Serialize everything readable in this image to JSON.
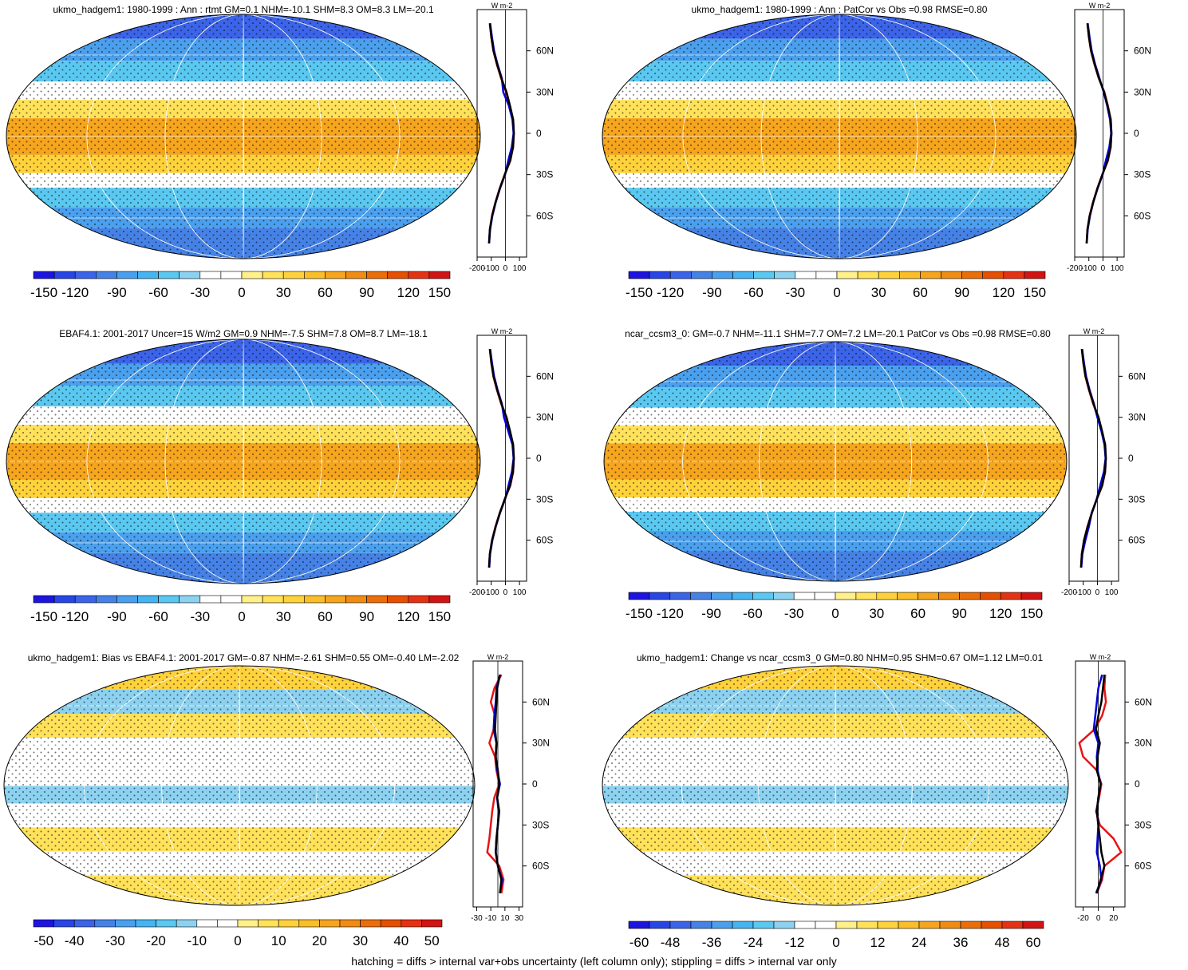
{
  "palette": {
    "colors": [
      "#1e14e0",
      "#2846e6",
      "#3c64e8",
      "#4682e6",
      "#4ba0ee",
      "#46b4f0",
      "#5ac8f0",
      "#8cd2f0",
      "#ffffff",
      "#ffffff",
      "#fff08c",
      "#ffe15a",
      "#ffd23c",
      "#fabe28",
      "#f5a51e",
      "#f08c14",
      "#eb6e0a",
      "#e65000",
      "#e63214",
      "#d21414"
    ],
    "obs_line": "#e61414",
    "model_line": "#0000dc",
    "ref_line": "#000000"
  },
  "footnote": "hatching = diffs > internal var+obs uncertainty (left column only); stippling = diffs > internal var only",
  "panels": [
    {
      "title": "ukmo_hadgem1: 1980-1999 : Ann : rtmt GM=0.1 NHM=-10.1 SHM=8.3 OM=8.3 LM=-20.1",
      "colorbar_labels": [
        "-150",
        "-120",
        "-90",
        "-60",
        "-30",
        "0",
        "30",
        "60",
        "90",
        "120",
        "150"
      ],
      "zonal_unit": "W m-2",
      "zonal_xticks": [
        "-200",
        "-100",
        "0",
        "100"
      ],
      "zonal_yticks": [
        "60N",
        "30N",
        "0",
        "30S",
        "60S"
      ],
      "pattern": "mean"
    },
    {
      "title": "ukmo_hadgem1: 1980-1999 : Ann : PatCor vs Obs =0.98 RMSE=0.80",
      "colorbar_labels": [
        "-150",
        "-120",
        "-90",
        "-60",
        "-30",
        "0",
        "30",
        "60",
        "90",
        "120",
        "150"
      ],
      "zonal_unit": "W m-2",
      "zonal_xticks": [
        "-200",
        "-100",
        "0",
        "100"
      ],
      "zonal_yticks": [
        "60N",
        "30N",
        "0",
        "30S",
        "60S"
      ],
      "pattern": "mean"
    },
    {
      "title": "EBAF4.1: 2001-2017 Uncer=15 W/m2 GM=0.9 NHM=-7.5 SHM=7.8 OM=8.7 LM=-18.1",
      "colorbar_labels": [
        "-150",
        "-120",
        "-90",
        "-60",
        "-30",
        "0",
        "30",
        "60",
        "90",
        "120",
        "150"
      ],
      "zonal_unit": "W m-2",
      "zonal_xticks": [
        "-200",
        "-100",
        "0",
        "100"
      ],
      "zonal_yticks": [
        "60N",
        "30N",
        "0",
        "30S",
        "60S"
      ],
      "pattern": "mean"
    },
    {
      "title": "ncar_ccsm3_0: GM=-0.7 NHM=-11.1 SHM=7.7 OM=7.2 LM=-20.1 PatCor vs Obs =0.98 RMSE=0.80",
      "colorbar_labels": [
        "-150",
        "-120",
        "-90",
        "-60",
        "-30",
        "0",
        "30",
        "60",
        "90",
        "120",
        "150"
      ],
      "zonal_unit": "W m-2",
      "zonal_xticks": [
        "-200",
        "-100",
        "0",
        "100"
      ],
      "zonal_yticks": [
        "60N",
        "30N",
        "0",
        "30S",
        "60S"
      ],
      "pattern": "mean"
    },
    {
      "title": "ukmo_hadgem1: Bias vs EBAF4.1: 2001-2017 GM=-0.87 NHM=-2.61 SHM=0.55 OM=-0.40 LM=-2.02",
      "colorbar_labels": [
        "-50",
        "-40",
        "-30",
        "-20",
        "-10",
        "0",
        "10",
        "20",
        "30",
        "40",
        "50"
      ],
      "zonal_unit": "W m-2",
      "zonal_xticks": [
        "-30",
        "-10",
        "10",
        "30"
      ],
      "zonal_yticks": [
        "60N",
        "30N",
        "0",
        "30S",
        "60S"
      ],
      "pattern": "diff"
    },
    {
      "title": "ukmo_hadgem1: Change vs ncar_ccsm3_0 GM=0.80 NHM=0.95 SHM=0.67 OM=1.12 LM=0.01",
      "colorbar_labels": [
        "-60",
        "-48",
        "-36",
        "-24",
        "-12",
        "0",
        "12",
        "24",
        "36",
        "48",
        "60"
      ],
      "zonal_unit": "W m-2",
      "zonal_xticks": [
        "-20",
        "0",
        "20"
      ],
      "zonal_yticks": [
        "60N",
        "30N",
        "0",
        "30S",
        "60S"
      ],
      "pattern": "diff"
    }
  ],
  "chart_data": [
    {
      "type": "heatmap",
      "title": "ukmo_hadgem1: 1980-1999 : Ann : rtmt GM=0.1 NHM=-10.1 SHM=8.3 OM=8.3 LM=-20.1",
      "colorbar": {
        "min": -150,
        "max": 150,
        "step": 15
      },
      "zonal_mean": {
        "x_range": [
          -200,
          150
        ],
        "lat": [
          -80,
          -70,
          -60,
          -50,
          -40,
          -30,
          -20,
          -10,
          0,
          10,
          20,
          30,
          40,
          50,
          60,
          70,
          80
        ],
        "series": [
          {
            "values": [
              -115,
              -110,
              -95,
              -70,
              -40,
              -5,
              35,
              55,
              60,
              55,
              30,
              5,
              -30,
              -60,
              -85,
              -100,
              -110
            ]
          },
          {
            "values": [
              -115,
              -108,
              -92,
              -68,
              -38,
              -2,
              20,
              45,
              58,
              50,
              25,
              -15,
              -25,
              -55,
              -80,
              -95,
              -108
            ]
          },
          {
            "values": [
              -116,
              -110,
              -94,
              -69,
              -39,
              -4,
              33,
              54,
              60,
              55,
              33,
              8,
              -28,
              -58,
              -84,
              -99,
              -110
            ]
          }
        ]
      }
    },
    {
      "type": "heatmap",
      "title": "ukmo_hadgem1: 1980-1999 : Ann : PatCor vs Obs =0.98 RMSE=0.80",
      "colorbar": {
        "min": -150,
        "max": 150,
        "step": 15
      },
      "zonal_mean": {
        "x_range": [
          -200,
          150
        ],
        "lat": [
          -80,
          -70,
          -60,
          -50,
          -40,
          -30,
          -20,
          -10,
          0,
          10,
          20,
          30,
          40,
          50,
          60,
          70,
          80
        ],
        "series": [
          {
            "values": [
              -115,
              -110,
              -95,
              -70,
              -40,
              -5,
              35,
              55,
              60,
              55,
              35,
              10,
              -30,
              -60,
              -85,
              -100,
              -110
            ]
          },
          {
            "values": [
              -115,
              -108,
              -92,
              -68,
              -38,
              -2,
              20,
              45,
              58,
              50,
              30,
              5,
              -25,
              -55,
              -80,
              -95,
              -108
            ]
          },
          {
            "values": [
              -116,
              -110,
              -94,
              -69,
              -39,
              -4,
              33,
              54,
              60,
              55,
              33,
              8,
              -28,
              -58,
              -84,
              -99,
              -110
            ]
          }
        ]
      }
    },
    {
      "type": "heatmap",
      "title": "EBAF4.1: 2001-2017 Uncer=15 W/m2 GM=0.9 NHM=-7.5 SHM=7.8 OM=8.7 LM=-18.1",
      "colorbar": {
        "min": -150,
        "max": 150,
        "step": 15
      },
      "zonal_mean": {
        "x_range": [
          -200,
          150
        ],
        "lat": [
          -80,
          -70,
          -60,
          -50,
          -40,
          -30,
          -20,
          -10,
          0,
          10,
          20,
          30,
          40,
          50,
          60,
          70,
          80
        ],
        "series": [
          {
            "values": [
              -115,
              -110,
              -95,
              -70,
              -40,
              -5,
              35,
              55,
              60,
              55,
              30,
              5,
              -30,
              -60,
              -85,
              -100,
              -110
            ]
          },
          {
            "values": [
              -114,
              -108,
              -92,
              -68,
              -38,
              -2,
              22,
              46,
              58,
              50,
              20,
              -10,
              -25,
              -55,
              -80,
              -95,
              -108
            ]
          },
          {
            "values": [
              -116,
              -110,
              -94,
              -69,
              -39,
              -4,
              33,
              54,
              60,
              55,
              33,
              8,
              -28,
              -58,
              -84,
              -99,
              -110
            ]
          }
        ]
      }
    },
    {
      "type": "heatmap",
      "title": "ncar_ccsm3_0: GM=-0.7 NHM=-11.1 SHM=7.7 OM=7.2 LM=-20.1 PatCor vs Obs =0.98 RMSE=0.80",
      "colorbar": {
        "min": -150,
        "max": 150,
        "step": 15
      },
      "zonal_mean": {
        "x_range": [
          -200,
          150
        ],
        "lat": [
          -80,
          -70,
          -60,
          -50,
          -40,
          -30,
          -20,
          -10,
          0,
          10,
          20,
          30,
          40,
          50,
          60,
          70,
          80
        ],
        "series": [
          {
            "values": [
              -115,
              -110,
              -95,
              -70,
              -40,
              -5,
              35,
              55,
              60,
              55,
              30,
              5,
              -30,
              -60,
              -85,
              -100,
              -110
            ]
          },
          {
            "values": [
              -114,
              -106,
              -85,
              -60,
              -40,
              -5,
              20,
              46,
              58,
              50,
              28,
              0,
              -25,
              -55,
              -80,
              -95,
              -108
            ]
          },
          {
            "values": [
              -116,
              -110,
              -94,
              -69,
              -39,
              -4,
              33,
              54,
              60,
              55,
              33,
              8,
              -28,
              -58,
              -84,
              -99,
              -110
            ]
          }
        ]
      }
    },
    {
      "type": "heatmap",
      "title": "ukmo_hadgem1: Bias vs EBAF4.1: 2001-2017 GM=-0.87 NHM=-2.61 SHM=0.55 OM=-0.40 LM=-2.02",
      "colorbar": {
        "min": -50,
        "max": 50,
        "step": 5
      },
      "zonal_mean": {
        "x_range": [
          -35,
          35
        ],
        "lat": [
          -80,
          -70,
          -60,
          -50,
          -40,
          -30,
          -20,
          -10,
          0,
          10,
          20,
          30,
          40,
          50,
          60,
          70,
          80
        ],
        "series": [
          {
            "values": [
              5,
              8,
              2,
              -15,
              -12,
              -10,
              -8,
              -5,
              2,
              -2,
              -4,
              -12,
              -6,
              -4,
              -10,
              -5,
              5
            ]
          },
          {
            "values": [
              3,
              6,
              0,
              -3,
              -2,
              0,
              1,
              -1,
              3,
              -1,
              -3,
              -2,
              -6,
              -5,
              -3,
              -2,
              3
            ]
          },
          {
            "values": [
              3,
              5,
              0,
              -3,
              -2,
              0,
              2,
              -1,
              2,
              0,
              -3,
              -2,
              -4,
              -3,
              -2,
              -1,
              3
            ]
          }
        ]
      }
    },
    {
      "type": "heatmap",
      "title": "ukmo_hadgem1: Change vs ncar_ccsm3_0 GM=0.80 NHM=0.95 SHM=0.67 OM=1.12 LM=0.01",
      "colorbar": {
        "min": -60,
        "max": 60,
        "step": 6
      },
      "zonal_mean": {
        "x_range": [
          -30,
          35
        ],
        "lat": [
          -80,
          -70,
          -60,
          -50,
          -40,
          -30,
          -20,
          -10,
          0,
          10,
          20,
          30,
          40,
          50,
          60,
          70,
          80
        ],
        "series": [
          {
            "values": [
              -2,
              5,
              8,
              30,
              20,
              2,
              -3,
              1,
              4,
              -2,
              -20,
              -25,
              -5,
              5,
              10,
              8,
              9
            ]
          },
          {
            "values": [
              -3,
              4,
              2,
              -2,
              -1,
              0,
              -2,
              0,
              3,
              -1,
              -2,
              0,
              -6,
              -4,
              -2,
              0,
              5
            ]
          },
          {
            "values": [
              -2,
              3,
              8,
              4,
              2,
              0,
              -2,
              0,
              3,
              -2,
              -1,
              2,
              -3,
              0,
              4,
              6,
              8
            ]
          }
        ]
      }
    }
  ]
}
